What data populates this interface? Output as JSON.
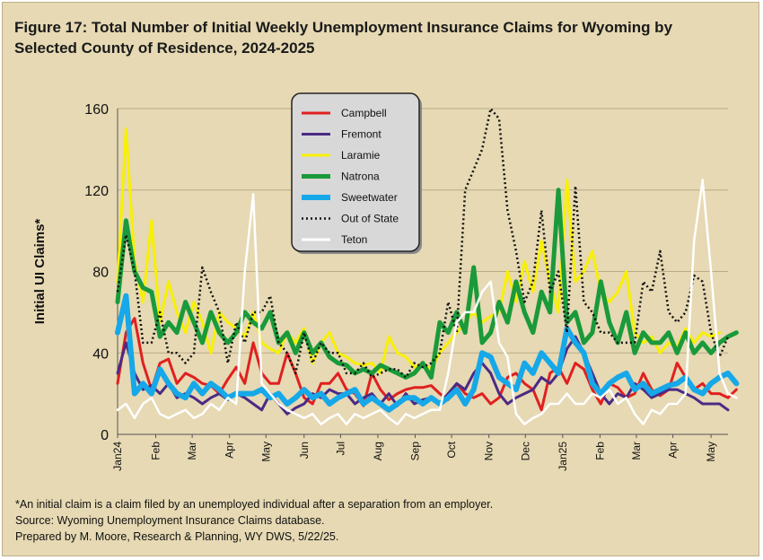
{
  "title": "Figure 17: Total Number of Initial Weekly Unemployment Insurance Claims for Wyoming by Selected County of Residence, 2024-2025",
  "footnotes": [
    "*An initial claim is a claim filed by an unemployed individual after a separation from an employer.",
    "Source: Wyoming Unemployment Insurance Claims database.",
    "Prepared by M. Moore, Research & Planning, WY DWS, 5/22/25."
  ],
  "chart_data": {
    "type": "line",
    "title": "Figure 17: Total Number of Initial Weekly Unemployment Insurance Claims for Wyoming by Selected County of Residence, 2024-2025",
    "ylabel": "Initial UI Claims*",
    "xlabel": "",
    "ylim": [
      0,
      160
    ],
    "yticks": [
      0,
      40,
      80,
      120,
      160
    ],
    "grid": "horizontal",
    "legend_position": "top-center",
    "x_week_count": 73,
    "x_ticks": [
      {
        "label": "Jan24",
        "week": 0
      },
      {
        "label": "Feb",
        "week": 4.5
      },
      {
        "label": "Mar",
        "week": 8.8
      },
      {
        "label": "Apr",
        "week": 13.2
      },
      {
        "label": "May",
        "week": 17.5
      },
      {
        "label": "Jun",
        "week": 22
      },
      {
        "label": "Jul",
        "week": 26.3
      },
      {
        "label": "Aug",
        "week": 30.7
      },
      {
        "label": "Sep",
        "week": 35.1
      },
      {
        "label": "Oct",
        "week": 39.4
      },
      {
        "label": "Nov",
        "week": 43.8
      },
      {
        "label": "Dec",
        "week": 48.1
      },
      {
        "label": "Jan25",
        "week": 52.5
      },
      {
        "label": "Feb",
        "week": 56.9
      },
      {
        "label": "Mar",
        "week": 61.2
      },
      {
        "label": "Apr",
        "week": 65.5
      },
      {
        "label": "May",
        "week": 70
      }
    ],
    "series": [
      {
        "name": "Campbell",
        "color": "#e02020",
        "style": "solid",
        "width": 3,
        "values": [
          25,
          50,
          57,
          35,
          22,
          35,
          37,
          25,
          30,
          28,
          25,
          24,
          20,
          27,
          33,
          25,
          45,
          30,
          25,
          25,
          40,
          30,
          18,
          15,
          25,
          25,
          30,
          22,
          20,
          14,
          30,
          22,
          17,
          20,
          22,
          23,
          23,
          24,
          20,
          17,
          25,
          20,
          18,
          20,
          15,
          18,
          28,
          30,
          25,
          22,
          12,
          30,
          33,
          25,
          35,
          32,
          22,
          15,
          25,
          23,
          18,
          20,
          30,
          22,
          19,
          22,
          35,
          28,
          22,
          25,
          20,
          20,
          18,
          22
        ]
      },
      {
        "name": "Fremont",
        "color": "#4b2a85",
        "style": "solid",
        "width": 3,
        "values": [
          30,
          45,
          30,
          22,
          24,
          20,
          25,
          18,
          20,
          18,
          15,
          18,
          20,
          17,
          20,
          18,
          15,
          12,
          20,
          15,
          10,
          13,
          15,
          20,
          18,
          22,
          20,
          20,
          15,
          18,
          20,
          15,
          20,
          14,
          20,
          15,
          17,
          18,
          15,
          20,
          25,
          22,
          30,
          35,
          30,
          20,
          15,
          18,
          20,
          22,
          28,
          25,
          30,
          42,
          48,
          40,
          30,
          20,
          15,
          20,
          18,
          25,
          22,
          18,
          20,
          22,
          22,
          20,
          18,
          15,
          15,
          15,
          12
        ]
      },
      {
        "name": "Laramie",
        "color": "#f8f000",
        "style": "solid",
        "width": 3,
        "values": [
          75,
          150,
          85,
          65,
          105,
          55,
          75,
          60,
          50,
          65,
          55,
          40,
          60,
          55,
          52,
          48,
          60,
          45,
          42,
          40,
          50,
          45,
          52,
          35,
          45,
          50,
          40,
          38,
          35,
          34,
          35,
          30,
          48,
          40,
          38,
          33,
          35,
          32,
          40,
          45,
          50,
          55,
          60,
          55,
          58,
          60,
          80,
          65,
          85,
          70,
          95,
          75,
          60,
          125,
          75,
          80,
          90,
          70,
          65,
          70,
          80,
          50,
          45,
          48,
          40,
          45,
          43,
          52,
          45,
          50,
          48,
          50
        ]
      },
      {
        "name": "Natrona",
        "color": "#1a9a3a",
        "style": "solid",
        "width": 5,
        "values": [
          65,
          105,
          80,
          72,
          70,
          48,
          55,
          50,
          65,
          55,
          45,
          60,
          50,
          45,
          50,
          60,
          55,
          52,
          60,
          45,
          50,
          40,
          50,
          40,
          45,
          38,
          35,
          34,
          30,
          32,
          30,
          34,
          32,
          30,
          28,
          30,
          35,
          28,
          55,
          50,
          60,
          50,
          82,
          45,
          50,
          65,
          55,
          75,
          60,
          50,
          70,
          60,
          120,
          55,
          60,
          45,
          50,
          75,
          55,
          45,
          60,
          40,
          50,
          45,
          45,
          50,
          40,
          50,
          40,
          45,
          40,
          45,
          48,
          50
        ]
      },
      {
        "name": "Sweetwater",
        "color": "#16a8e8",
        "style": "solid",
        "width": 6,
        "values": [
          50,
          68,
          20,
          25,
          20,
          32,
          25,
          20,
          18,
          25,
          20,
          25,
          22,
          18,
          20,
          20,
          20,
          22,
          18,
          20,
          15,
          18,
          22,
          18,
          20,
          15,
          18,
          20,
          22,
          15,
          18,
          15,
          12,
          15,
          18,
          18,
          15,
          18,
          15,
          18,
          22,
          15,
          22,
          40,
          38,
          28,
          25,
          22,
          35,
          30,
          40,
          35,
          30,
          52,
          45,
          40,
          25,
          20,
          25,
          28,
          30,
          22,
          25,
          20,
          22,
          24,
          25,
          28,
          22,
          20,
          25,
          28,
          30,
          25
        ]
      },
      {
        "name": "Out of State",
        "color": "#111111",
        "style": "dotted",
        "width": 2.5,
        "values": [
          70,
          98,
          80,
          45,
          45,
          60,
          40,
          40,
          35,
          40,
          82,
          70,
          60,
          35,
          55,
          45,
          60,
          60,
          68,
          45,
          40,
          30,
          50,
          35,
          45,
          40,
          40,
          30,
          30,
          35,
          28,
          30,
          32,
          32,
          28,
          35,
          33,
          35,
          40,
          65,
          50,
          120,
          130,
          140,
          160,
          155,
          110,
          90,
          65,
          75,
          110,
          70,
          80,
          50,
          122,
          65,
          60,
          50,
          50,
          45,
          45,
          45,
          75,
          70,
          90,
          60,
          55,
          60,
          78,
          75,
          50,
          38,
          48
        ]
      },
      {
        "name": "Teton",
        "color": "#ffffff",
        "style": "solid",
        "width": 2.5,
        "values": [
          12,
          15,
          8,
          15,
          18,
          10,
          8,
          10,
          12,
          8,
          10,
          15,
          12,
          18,
          15,
          80,
          118,
          25,
          20,
          15,
          12,
          10,
          8,
          10,
          5,
          8,
          10,
          5,
          10,
          8,
          10,
          12,
          8,
          5,
          10,
          8,
          10,
          12,
          12,
          30,
          55,
          60,
          60,
          70,
          75,
          45,
          38,
          10,
          5,
          8,
          10,
          15,
          15,
          20,
          15,
          15,
          20,
          18,
          22,
          15,
          18,
          10,
          5,
          12,
          10,
          15,
          15,
          20,
          95,
          125,
          80,
          30,
          20,
          18
        ]
      }
    ]
  }
}
